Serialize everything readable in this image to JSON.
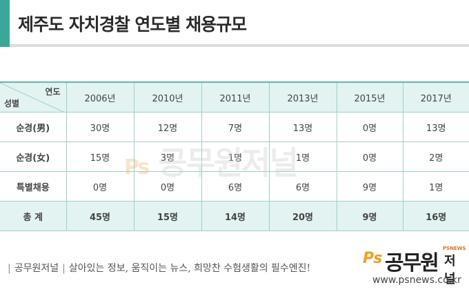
{
  "title": "제주도 자치경찰 연도별 채용규모",
  "colors": {
    "accent": "#3aa79b",
    "header_bg": "#e2f3f1",
    "grid": "#9bd1cb"
  },
  "table": {
    "corner_year": "연도",
    "corner_gender": "성별",
    "years": [
      "2006년",
      "2010년",
      "2011년",
      "2013년",
      "2015년",
      "2017년"
    ],
    "rows": [
      {
        "label": "순경(男)",
        "values": [
          "30명",
          "12명",
          "7명",
          "13명",
          "0명",
          "13명"
        ]
      },
      {
        "label": "순경(女)",
        "values": [
          "15명",
          "3명",
          "1명",
          "1명",
          "0명",
          "2명"
        ]
      },
      {
        "label": "특별채용",
        "values": [
          "0명",
          "0명",
          "6명",
          "6명",
          "9명",
          "1명"
        ]
      }
    ],
    "total": {
      "label": "총 계",
      "values": [
        "45명",
        "15명",
        "14명",
        "20명",
        "9명",
        "16명"
      ]
    }
  },
  "watermark": {
    "ps": "Ps",
    "text": "공무원저널"
  },
  "footer": {
    "brand": "공무원저널",
    "slogan": "살아있는 정보, 움직이는 뉴스, 희망찬 수험생활의 필수엔진!",
    "logo_ps": "Ps",
    "logo_main": "공무원",
    "logo_sub": "저널",
    "logo_tiny": "PSNEWS",
    "url": "www.psnews.co.kr"
  }
}
